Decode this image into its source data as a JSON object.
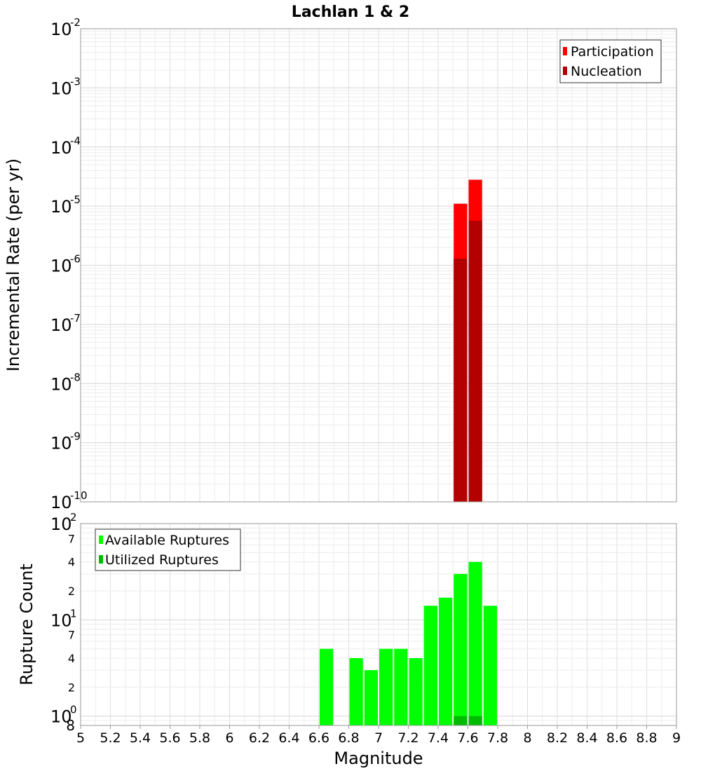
{
  "chart_data": [
    {
      "type": "bar",
      "panel": "top",
      "title": "Lachlan 1 & 2",
      "ylabel": "Incremental Rate (per yr)",
      "yscale": "log",
      "ylim": [
        1e-10,
        0.01
      ],
      "y_ticks": [
        {
          "base": "10",
          "exp": "-10",
          "value": 1e-10
        },
        {
          "base": "10",
          "exp": "-9",
          "value": 1e-09
        },
        {
          "base": "10",
          "exp": "-8",
          "value": 1e-08
        },
        {
          "base": "10",
          "exp": "-7",
          "value": 1e-07
        },
        {
          "base": "10",
          "exp": "-6",
          "value": 1e-06
        },
        {
          "base": "10",
          "exp": "-5",
          "value": 1e-05
        },
        {
          "base": "10",
          "exp": "-4",
          "value": 0.0001
        },
        {
          "base": "10",
          "exp": "-3",
          "value": 0.001
        },
        {
          "base": "10",
          "exp": "-2",
          "value": 0.01
        }
      ],
      "bin_width": 0.1,
      "series": [
        {
          "name": "Participation",
          "color": "#ff0000",
          "points": [
            {
              "x": 7.55,
              "y": 1.1e-05
            },
            {
              "x": 7.65,
              "y": 2.8e-05
            }
          ]
        },
        {
          "name": "Nucleation",
          "color": "#b30000",
          "points": [
            {
              "x": 7.55,
              "y": 1.3e-06
            },
            {
              "x": 7.65,
              "y": 5.7e-06
            }
          ]
        }
      ],
      "legend": {
        "position": "top-right",
        "items": [
          "Participation",
          "Nucleation"
        ]
      }
    },
    {
      "type": "bar",
      "panel": "bottom",
      "xlabel": "Magnitude",
      "ylabel": "Rupture Count",
      "yscale": "log",
      "ylim": [
        0.8,
        100
      ],
      "y_major_ticks": [
        {
          "base": "10",
          "exp": "0",
          "value": 1
        },
        {
          "base": "10",
          "exp": "1",
          "value": 10
        },
        {
          "base": "10",
          "exp": "2",
          "value": 100
        }
      ],
      "y_minor_ticks": [
        {
          "label": "8",
          "value": 0.8
        },
        {
          "label": "2",
          "value": 2
        },
        {
          "label": "4",
          "value": 4
        },
        {
          "label": "7",
          "value": 7
        },
        {
          "label": "2",
          "value": 20
        },
        {
          "label": "4",
          "value": 40
        },
        {
          "label": "7",
          "value": 70
        }
      ],
      "bin_width": 0.1,
      "series": [
        {
          "name": "Available Ruptures",
          "color": "#00ff00",
          "points": [
            {
              "x": 6.65,
              "y": 5
            },
            {
              "x": 6.85,
              "y": 4
            },
            {
              "x": 6.95,
              "y": 3
            },
            {
              "x": 7.05,
              "y": 5
            },
            {
              "x": 7.15,
              "y": 5
            },
            {
              "x": 7.25,
              "y": 4
            },
            {
              "x": 7.35,
              "y": 14
            },
            {
              "x": 7.45,
              "y": 17
            },
            {
              "x": 7.55,
              "y": 30
            },
            {
              "x": 7.65,
              "y": 40
            },
            {
              "x": 7.75,
              "y": 14
            }
          ]
        },
        {
          "name": "Utilized Ruptures",
          "color": "#00bb00",
          "points": [
            {
              "x": 7.55,
              "y": 1
            },
            {
              "x": 7.65,
              "y": 1
            }
          ]
        }
      ],
      "legend": {
        "position": "top-left",
        "items": [
          "Available Ruptures",
          "Utilized Ruptures"
        ]
      }
    }
  ],
  "x_axis": {
    "label": "Magnitude",
    "range": [
      5,
      9
    ],
    "tick_values": [
      5,
      5.2,
      5.4,
      5.6,
      5.8,
      6,
      6.2,
      6.4,
      6.6,
      6.8,
      7,
      7.2,
      7.4,
      7.6,
      7.8,
      8,
      8.2,
      8.4,
      8.6,
      8.8,
      9
    ],
    "tick_labels": [
      "5",
      "5.2",
      "5.4",
      "5.6",
      "5.8",
      "6",
      "6.2",
      "6.4",
      "6.6",
      "6.8",
      "7",
      "7.2",
      "7.4",
      "7.6",
      "7.8",
      "8",
      "8.2",
      "8.4",
      "8.6",
      "8.8",
      "9"
    ]
  }
}
